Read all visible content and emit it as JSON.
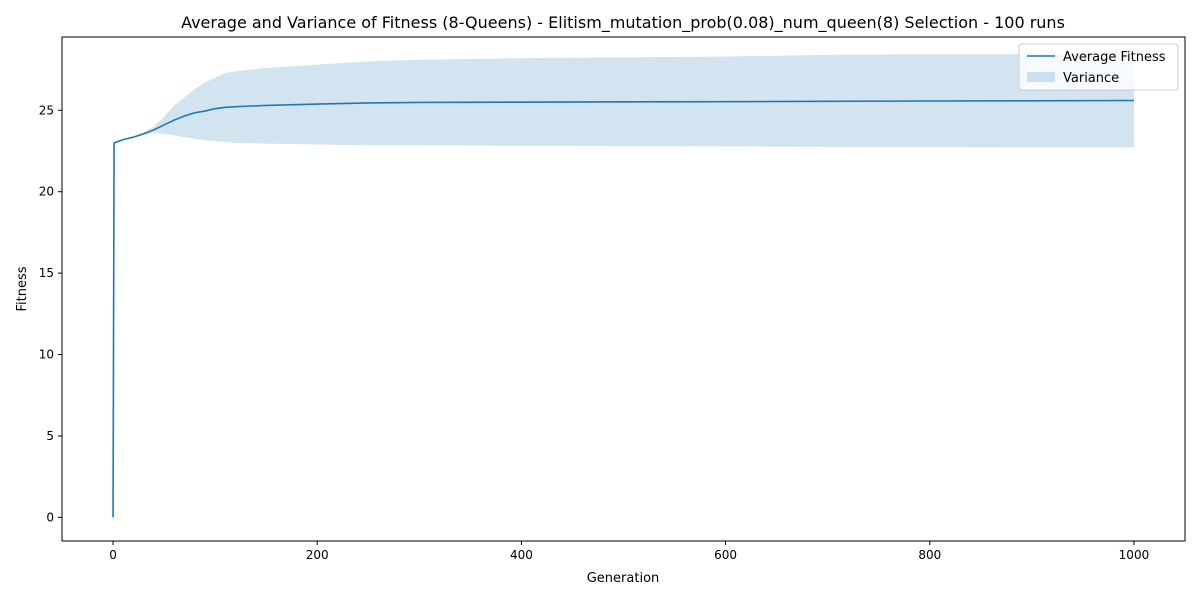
{
  "chart_data": {
    "type": "line",
    "title": "Average and Variance of Fitness (8-Queens) - Elitism_mutation_prob(0.08)_num_queen(8) Selection - 100 runs",
    "xlabel": "Generation",
    "ylabel": "Fitness",
    "xlim": [
      -50,
      1050
    ],
    "ylim": [
      -1.45,
      29.5
    ],
    "xticks": [
      0,
      200,
      400,
      600,
      800,
      1000
    ],
    "yticks": [
      0,
      5,
      10,
      15,
      20,
      25
    ],
    "grid": false,
    "legend_position": "top-right",
    "colors": {
      "line": "#1f77b4",
      "band": "#1f77b4"
    },
    "series": [
      {
        "name": "Average Fitness",
        "x": [
          0,
          1,
          10,
          20,
          30,
          40,
          50,
          60,
          70,
          80,
          90,
          100,
          110,
          120,
          150,
          200,
          250,
          300,
          400,
          500,
          600,
          700,
          800,
          900,
          1000
        ],
        "y": [
          0,
          23.0,
          23.2,
          23.35,
          23.55,
          23.8,
          24.1,
          24.4,
          24.65,
          24.85,
          24.95,
          25.1,
          25.18,
          25.22,
          25.3,
          25.38,
          25.45,
          25.48,
          25.5,
          25.52,
          25.53,
          25.55,
          25.57,
          25.58,
          25.6
        ]
      },
      {
        "name": "Variance",
        "x": [
          0,
          1,
          10,
          20,
          30,
          40,
          50,
          60,
          70,
          80,
          90,
          100,
          110,
          120,
          150,
          200,
          250,
          300,
          400,
          500,
          600,
          700,
          800,
          900,
          1000
        ],
        "lower": [
          0,
          23.0,
          23.2,
          23.35,
          23.5,
          23.6,
          23.55,
          23.45,
          23.35,
          23.25,
          23.15,
          23.1,
          23.05,
          23.0,
          22.95,
          22.9,
          22.85,
          22.85,
          22.82,
          22.8,
          22.78,
          22.75,
          22.73,
          22.72,
          22.72
        ],
        "upper": [
          0,
          23.0,
          23.2,
          23.4,
          23.65,
          24.0,
          24.6,
          25.3,
          25.8,
          26.3,
          26.7,
          27.0,
          27.3,
          27.4,
          27.6,
          27.8,
          28.0,
          28.1,
          28.2,
          28.25,
          28.3,
          28.4,
          28.45,
          28.45,
          28.45
        ]
      }
    ]
  }
}
